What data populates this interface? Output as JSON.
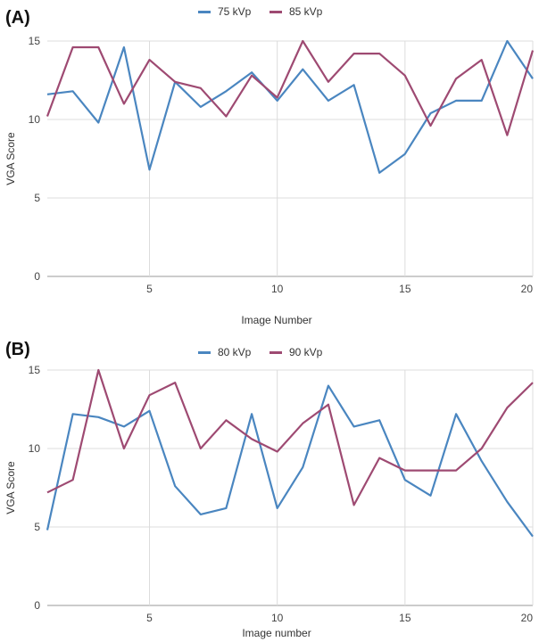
{
  "chart_data": [
    {
      "type": "line",
      "panel_label": "(A)",
      "xlabel": "Image Number",
      "ylabel": "VGA Score",
      "xlim": [
        1,
        20
      ],
      "ylim": [
        0,
        15
      ],
      "xticks": [
        5,
        10,
        15,
        20
      ],
      "yticks": [
        0,
        5,
        10,
        15
      ],
      "grid": true,
      "legend_position": "top-center",
      "x": [
        1,
        2,
        3,
        4,
        5,
        6,
        7,
        8,
        9,
        10,
        11,
        12,
        13,
        14,
        15,
        16,
        17,
        18,
        19,
        20
      ],
      "series": [
        {
          "name": "75 kVp",
          "color": "#4a86c0",
          "values": [
            11.6,
            11.8,
            9.8,
            14.6,
            6.8,
            12.4,
            10.8,
            11.8,
            13.0,
            11.2,
            13.2,
            11.2,
            12.2,
            6.6,
            7.8,
            10.4,
            11.2,
            11.2,
            15.0,
            12.6
          ]
        },
        {
          "name": "85 kVp",
          "color": "#9e4a72",
          "values": [
            10.2,
            14.6,
            14.6,
            11.0,
            13.8,
            12.4,
            12.0,
            10.2,
            12.8,
            11.4,
            15.0,
            12.4,
            14.2,
            14.2,
            12.8,
            9.6,
            12.6,
            13.8,
            9.0,
            14.4
          ]
        }
      ]
    },
    {
      "type": "line",
      "panel_label": "(B)",
      "xlabel": "Image number",
      "ylabel": "VGA Score",
      "xlim": [
        1,
        20
      ],
      "ylim": [
        0,
        15
      ],
      "xticks": [
        5,
        10,
        15,
        20
      ],
      "yticks": [
        0,
        5,
        10,
        15
      ],
      "grid": true,
      "legend_position": "top-center",
      "x": [
        1,
        2,
        3,
        4,
        5,
        6,
        7,
        8,
        9,
        10,
        11,
        12,
        13,
        14,
        15,
        16,
        17,
        18,
        19,
        20
      ],
      "series": [
        {
          "name": "80 kVp",
          "color": "#4a86c0",
          "values": [
            4.8,
            12.2,
            12.0,
            11.4,
            12.4,
            7.6,
            5.8,
            6.2,
            12.2,
            6.2,
            8.8,
            14.0,
            11.4,
            11.8,
            8.0,
            7.0,
            12.2,
            9.2,
            6.6,
            4.4
          ]
        },
        {
          "name": "90 kVp",
          "color": "#9e4a72",
          "values": [
            7.2,
            8.0,
            15.0,
            10.0,
            13.4,
            14.2,
            10.0,
            11.8,
            10.6,
            9.8,
            11.6,
            12.8,
            6.4,
            9.4,
            8.6,
            8.6,
            8.6,
            10.0,
            12.6,
            14.2
          ]
        }
      ]
    }
  ]
}
